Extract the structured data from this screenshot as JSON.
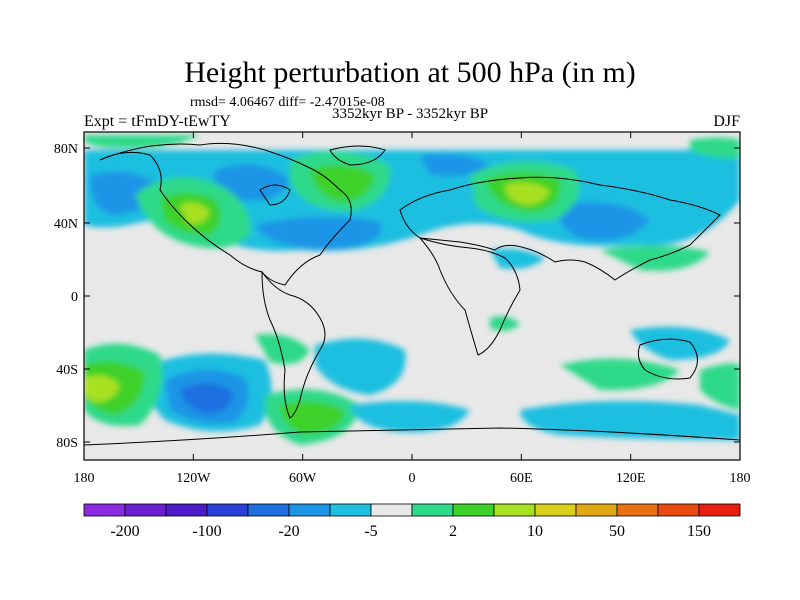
{
  "title": "Height perturbation at 500 hPa (in m)",
  "stats": "rmsd= 4.06467 diff= -2.47015e-08",
  "subtitle_center": "3352kyr BP - 3352kyr BP",
  "subtitle_left": "Expt = tFmDY-tEwTY",
  "subtitle_right": "DJF",
  "lat_ticks": [
    "80N",
    "40N",
    "0",
    "40S",
    "80S"
  ],
  "lon_ticks": [
    "180",
    "120W",
    "60W",
    "0",
    "60E",
    "120E",
    "180"
  ],
  "colorbar": {
    "colors": [
      "#8a2be2",
      "#6a1fd0",
      "#4b1cc8",
      "#2a3fd8",
      "#1f6fe0",
      "#1d95e6",
      "#1fbfe0",
      "#e8e8e8",
      "#2ed98a",
      "#3ed12a",
      "#a8e024",
      "#d8d01a",
      "#e0a812",
      "#e87010",
      "#e84a10",
      "#e81e10"
    ],
    "labels": [
      "-200",
      "-100",
      "-20",
      "-5",
      "2",
      "10",
      "50",
      "150"
    ]
  },
  "chart_data": {
    "type": "heatmap",
    "projection": "cylindrical equidistant",
    "xlim": [
      -180,
      180
    ],
    "ylim": [
      -90,
      90
    ],
    "levels_visible": [
      "-20",
      "-5",
      "2",
      "10"
    ],
    "anomalies": [
      {
        "lon": -120,
        "lat": 50,
        "value": 10
      },
      {
        "lon": -50,
        "lat": 55,
        "value": 10
      },
      {
        "lon": 60,
        "lat": 55,
        "value": 10
      },
      {
        "lon": -110,
        "lat": -55,
        "value": -20
      },
      {
        "lon": -170,
        "lat": -50,
        "value": 10
      },
      {
        "lon": -55,
        "lat": -65,
        "value": 5
      },
      {
        "lon": -85,
        "lat": 65,
        "value": -5
      },
      {
        "lon": -20,
        "lat": 45,
        "value": -5
      },
      {
        "lon": 100,
        "lat": 45,
        "value": -5
      },
      {
        "lon": -30,
        "lat": -40,
        "value": -5
      },
      {
        "lon": 100,
        "lat": -55,
        "value": -5
      }
    ]
  }
}
